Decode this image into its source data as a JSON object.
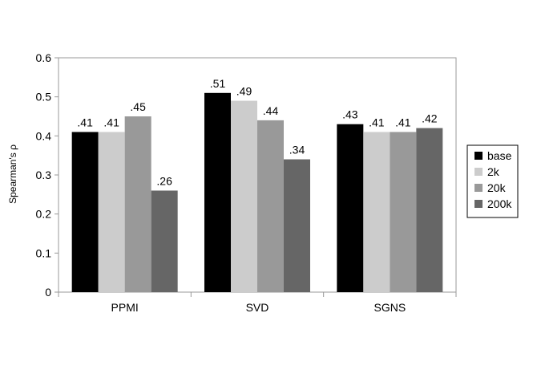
{
  "chart_data": {
    "type": "bar",
    "categories": [
      "PPMI",
      "SVD",
      "SGNS"
    ],
    "series": [
      {
        "name": "base",
        "values": [
          0.41,
          0.51,
          0.43
        ],
        "labels": [
          ".41",
          ".51",
          ".43"
        ],
        "color": "#000000"
      },
      {
        "name": "2k",
        "values": [
          0.41,
          0.49,
          0.41
        ],
        "labels": [
          ".41",
          ".49",
          ".41"
        ],
        "color": "#cccccc"
      },
      {
        "name": "20k",
        "values": [
          0.45,
          0.44,
          0.41
        ],
        "labels": [
          ".45",
          ".44",
          ".41"
        ],
        "color": "#999999"
      },
      {
        "name": "200k",
        "values": [
          0.26,
          0.34,
          0.42
        ],
        "labels": [
          ".26",
          ".34",
          ".42"
        ],
        "color": "#666666"
      }
    ],
    "title": "",
    "xlabel": "",
    "ylabel": "Spearman's ρ",
    "ylim": [
      0,
      0.6
    ],
    "yticks": [
      "0",
      "0.1",
      "0.2",
      "0.3",
      "0.4",
      "0.5",
      "0.6"
    ],
    "grid": false,
    "legend_position": "right"
  }
}
